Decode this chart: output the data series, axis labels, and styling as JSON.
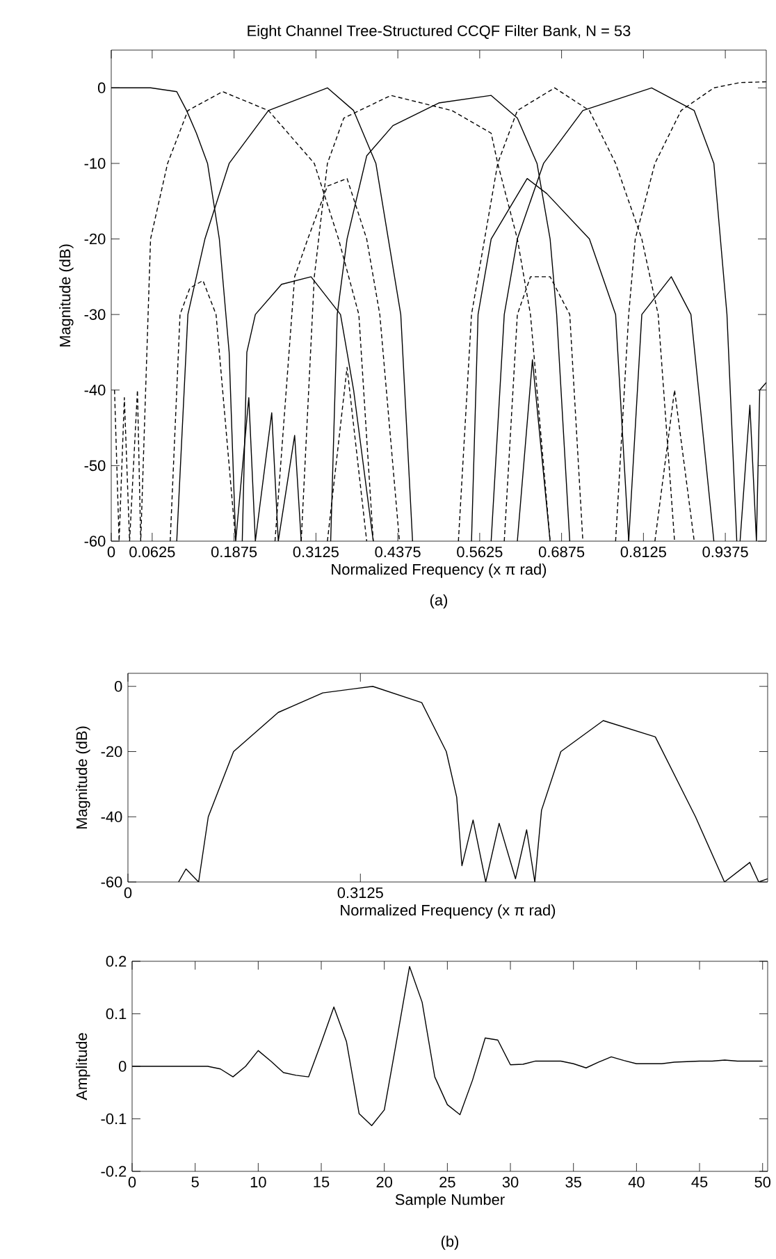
{
  "chart_data": [
    {
      "type": "line",
      "title": "Eight Channel Tree-Structured CCQF Filter Bank, N = 53",
      "xlabel": "Normalized Frequency (x π rad)",
      "ylabel": "Magnitude (dB)",
      "annotations": [
        "(a)"
      ],
      "xlim": [
        0,
        1
      ],
      "ylim": [
        -60,
        5
      ],
      "xticks": [
        0,
        0.0625,
        0.1875,
        0.3125,
        0.4375,
        0.5625,
        0.6875,
        0.8125,
        0.9375
      ],
      "yticks": [
        -60,
        -50,
        -40,
        -30,
        -20,
        -10,
        0
      ],
      "series": [
        {
          "color": "#000000",
          "line_style": "solid",
          "x": [
            0,
            0.06,
            0.1,
            0.115,
            0.13,
            0.147,
            0.165,
            0.18,
            0.19,
            0.21,
            0.22,
            0.245,
            0.255,
            0.28,
            0.29
          ],
          "values": [
            0,
            0,
            -0.5,
            -3,
            -6,
            -10,
            -20,
            -35,
            -60,
            -41,
            -60,
            -43,
            -60,
            -46,
            -60
          ]
        },
        {
          "color": "#000000",
          "line_style": "dashed",
          "x": [
            0.005,
            0.012,
            0.02,
            0.028,
            0.04,
            0.045,
            0.06,
            0.086,
            0.117,
            0.17,
            0.24,
            0.31,
            0.347,
            0.378,
            0.4
          ],
          "values": [
            -40,
            -60,
            -41,
            -60,
            -40,
            -60,
            -20,
            -10,
            -3,
            -0.5,
            -3,
            -10,
            -20,
            -30,
            -60
          ]
        },
        {
          "color": "#000000",
          "line_style": "dashed",
          "x": [
            0.09,
            0.105,
            0.12,
            0.14,
            0.16,
            0.19
          ],
          "values": [
            -60,
            -30,
            -26.5,
            -25.5,
            -30,
            -60
          ]
        },
        {
          "color": "#000000",
          "line_style": "solid",
          "x": [
            0.1,
            0.117,
            0.143,
            0.18,
            0.24,
            0.33,
            0.37,
            0.404,
            0.423,
            0.442,
            0.46
          ],
          "values": [
            -60,
            -30,
            -20,
            -10,
            -3,
            0,
            -3,
            -10,
            -20,
            -30,
            -60
          ]
        },
        {
          "color": "#000000",
          "line_style": "solid",
          "x": [
            0.2,
            0.207,
            0.22,
            0.26,
            0.305,
            0.35,
            0.37,
            0.4
          ],
          "values": [
            -60,
            -35,
            -30,
            -26,
            -25,
            -30,
            -40,
            -60
          ]
        },
        {
          "color": "#000000",
          "line_style": "dashed",
          "x": [
            0.29,
            0.31,
            0.33,
            0.355,
            0.427,
            0.52,
            0.58,
            0.59,
            0.62,
            0.64,
            0.67
          ],
          "values": [
            -60,
            -25,
            -10,
            -4,
            -1,
            -3,
            -6,
            -10,
            -20,
            -30,
            -60
          ]
        },
        {
          "color": "#000000",
          "line_style": "dashed",
          "x": [
            0.25,
            0.28,
            0.3,
            0.33,
            0.36,
            0.39,
            0.41,
            0.44
          ],
          "values": [
            -60,
            -25,
            -20,
            -13,
            -12,
            -20,
            -30,
            -60
          ]
        },
        {
          "color": "#000000",
          "line_style": "dashed",
          "x": [
            0.33,
            0.36,
            0.39
          ],
          "values": [
            -60,
            -37,
            -60
          ]
        },
        {
          "color": "#000000",
          "line_style": "solid",
          "x": [
            0.335,
            0.345,
            0.36,
            0.39,
            0.43,
            0.5,
            0.58,
            0.62,
            0.65,
            0.67,
            0.68,
            0.7
          ],
          "values": [
            -60,
            -30,
            -20,
            -9,
            -5,
            -2,
            -1,
            -4,
            -10,
            -20,
            -30,
            -60
          ]
        },
        {
          "color": "#000000",
          "line_style": "solid",
          "x": [
            0.55,
            0.56,
            0.58,
            0.635,
            0.665,
            0.73,
            0.77,
            0.79
          ],
          "values": [
            -60,
            -30,
            -20,
            -12,
            -14,
            -20,
            -30,
            -60
          ]
        },
        {
          "color": "#000000",
          "line_style": "solid",
          "x": [
            0.62,
            0.643,
            0.67
          ],
          "values": [
            -60,
            -36,
            -60
          ]
        },
        {
          "color": "#000000",
          "line_style": "dashed",
          "x": [
            0.53,
            0.55,
            0.57,
            0.59,
            0.62,
            0.677,
            0.73,
            0.77,
            0.81,
            0.835,
            0.86
          ],
          "values": [
            -60,
            -30,
            -20,
            -10,
            -3,
            0,
            -3,
            -10,
            -20,
            -30,
            -60
          ]
        },
        {
          "color": "#000000",
          "line_style": "dashed",
          "x": [
            0.6,
            0.62,
            0.64,
            0.67,
            0.7,
            0.72
          ],
          "values": [
            -60,
            -30,
            -25,
            -25,
            -30,
            -60
          ]
        },
        {
          "color": "#000000",
          "line_style": "solid",
          "x": [
            0.58,
            0.6,
            0.62,
            0.66,
            0.72,
            0.825,
            0.89,
            0.92,
            0.93,
            0.94,
            0.955
          ],
          "values": [
            -60,
            -30,
            -20,
            -10,
            -3,
            0,
            -3,
            -10,
            -20,
            -30,
            -60
          ]
        },
        {
          "color": "#000000",
          "line_style": "solid",
          "x": [
            0.79,
            0.81,
            0.855,
            0.885,
            0.92
          ],
          "values": [
            -60,
            -30,
            -25,
            -30,
            -60
          ]
        },
        {
          "color": "#000000",
          "line_style": "solid",
          "x": [
            0.96,
            0.975,
            0.985,
            0.99,
            1.0
          ],
          "values": [
            -60,
            -42,
            -60,
            -40,
            -39
          ]
        },
        {
          "color": "#000000",
          "line_style": "dashed",
          "x": [
            0.77,
            0.79,
            0.8,
            0.83,
            0.87,
            0.92,
            0.96,
            1.0
          ],
          "values": [
            -60,
            -30,
            -20,
            -10,
            -3,
            0,
            0.7,
            0.8
          ]
        },
        {
          "color": "#000000",
          "line_style": "dashed",
          "x": [
            0.83,
            0.86,
            0.89
          ],
          "values": [
            -60,
            -40,
            -60
          ]
        }
      ]
    },
    {
      "type": "line",
      "xlabel": "Normalized Frequency (x π rad)",
      "ylabel": "Magnitude (dB)",
      "xlim": [
        0,
        0.86
      ],
      "ylim": [
        -60,
        4
      ],
      "xticks": [
        0,
        0.3125
      ],
      "yticks": [
        -60,
        -40,
        -20,
        0
      ],
      "series": [
        {
          "color": "#000000",
          "line_style": "solid",
          "x": [
            0.068,
            0.078,
            0.095,
            0.108,
            0.142,
            0.202,
            0.262,
            0.329,
            0.395,
            0.428,
            0.442,
            0.449,
            0.464,
            0.481,
            0.499,
            0.521,
            0.536,
            0.547,
            0.556,
            0.582,
            0.639,
            0.709,
            0.763,
            0.802,
            0.836,
            0.848,
            0.86
          ],
          "values": [
            -60,
            -56,
            -60,
            -40,
            -20,
            -8,
            -2,
            0,
            -5,
            -20,
            -34,
            -55,
            -41,
            -60,
            -42,
            -59,
            -44,
            -60,
            -38,
            -20,
            -10.5,
            -15.5,
            -40,
            -60,
            -54,
            -60,
            -59
          ]
        }
      ]
    },
    {
      "type": "line",
      "xlabel": "Sample Number",
      "ylabel": "Amplitude",
      "annotations": [
        "(b)"
      ],
      "xlim": [
        0,
        50.4
      ],
      "ylim": [
        -0.2,
        0.2
      ],
      "xticks": [
        0,
        5,
        10,
        15,
        20,
        25,
        30,
        35,
        40,
        45,
        50
      ],
      "yticks": [
        -0.2,
        -0.1,
        0,
        0.1,
        0.2
      ],
      "series": [
        {
          "color": "#000000",
          "line_style": "solid",
          "x": [
            0,
            1,
            2,
            3,
            4,
            5,
            6,
            7,
            8,
            9,
            10,
            11,
            12,
            13,
            14,
            15,
            16,
            17,
            18,
            19,
            20,
            21,
            22,
            23,
            24,
            25,
            26,
            27,
            28,
            29,
            30,
            31,
            32,
            33,
            34,
            35,
            36,
            37,
            38,
            39,
            40,
            41,
            42,
            43,
            44,
            45,
            46,
            47,
            48,
            49,
            50
          ],
          "values": [
            0,
            0,
            0,
            0,
            0,
            0,
            0,
            -0.005,
            -0.02,
            0,
            0.03,
            0.01,
            -0.012,
            -0.017,
            -0.02,
            0.045,
            0.113,
            0.047,
            -0.09,
            -0.113,
            -0.083,
            0.052,
            0.19,
            0.122,
            -0.02,
            -0.073,
            -0.092,
            -0.026,
            0.054,
            0.05,
            0.003,
            0.004,
            0.01,
            0.01,
            0.01,
            0.005,
            -0.003,
            0.008,
            0.018,
            0.011,
            0.005,
            0.005,
            0.005,
            0.008,
            0.009,
            0.01,
            0.01,
            0.012,
            0.01,
            0.01,
            0.01
          ]
        }
      ]
    }
  ]
}
